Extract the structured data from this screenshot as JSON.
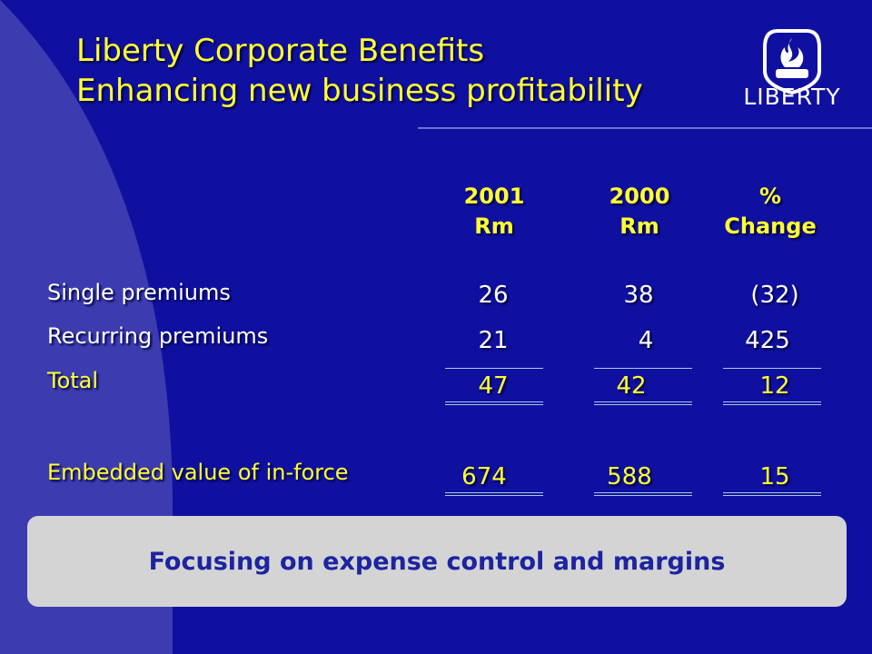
{
  "title": {
    "line1": "Liberty Corporate Benefits",
    "line2": "Enhancing new business profitability"
  },
  "logo": {
    "text": "LIBERTY",
    "icon": "flame-shield-icon"
  },
  "columns": [
    {
      "line1": "2001",
      "line2": "Rm"
    },
    {
      "line1": "2000",
      "line2": "Rm"
    },
    {
      "line1": "%",
      "line2": "Change"
    }
  ],
  "rows": [
    {
      "label": "Single premiums",
      "values": [
        "26",
        "38",
        "(32)"
      ]
    },
    {
      "label": "Recurring premiums",
      "values": [
        "21",
        "4",
        "425"
      ]
    },
    {
      "label": "Total",
      "values": [
        "47",
        "42",
        "12"
      ]
    },
    {
      "label": "Embedded value of in-force",
      "values": [
        "674",
        "588",
        "15"
      ]
    }
  ],
  "callout": "Focusing on expense control and margins",
  "colors": {
    "background": "#1010a0",
    "accent_shape": "#3c3cb0",
    "title": "#ffff33",
    "callout_bg": "#d4d4d4",
    "callout_text": "#1c24a0"
  }
}
